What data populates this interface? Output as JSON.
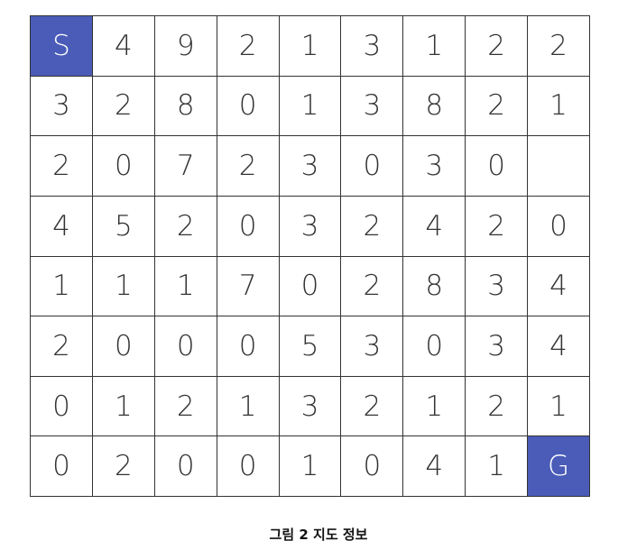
{
  "grid": {
    "rows": [
      [
        "S",
        "4",
        "9",
        "2",
        "1",
        "3",
        "1",
        "2",
        "2"
      ],
      [
        "3",
        "2",
        "8",
        "0",
        "1",
        "3",
        "8",
        "2",
        "1"
      ],
      [
        "2",
        "0",
        "7",
        "2",
        "3",
        "0",
        "3",
        "0",
        ""
      ],
      [
        "4",
        "5",
        "2",
        "0",
        "3",
        "2",
        "4",
        "2",
        "0"
      ],
      [
        "1",
        "1",
        "1",
        "7",
        "0",
        "2",
        "8",
        "3",
        "4"
      ],
      [
        "2",
        "0",
        "0",
        "0",
        "5",
        "3",
        "0",
        "3",
        "4"
      ],
      [
        "0",
        "1",
        "2",
        "1",
        "3",
        "2",
        "1",
        "2",
        "1"
      ],
      [
        "0",
        "2",
        "0",
        "0",
        "1",
        "0",
        "4",
        "1",
        "G"
      ]
    ],
    "start_label": "S",
    "goal_label": "G",
    "marker_color": "#4a5cb8"
  },
  "caption": "그림 2 지도 정보"
}
